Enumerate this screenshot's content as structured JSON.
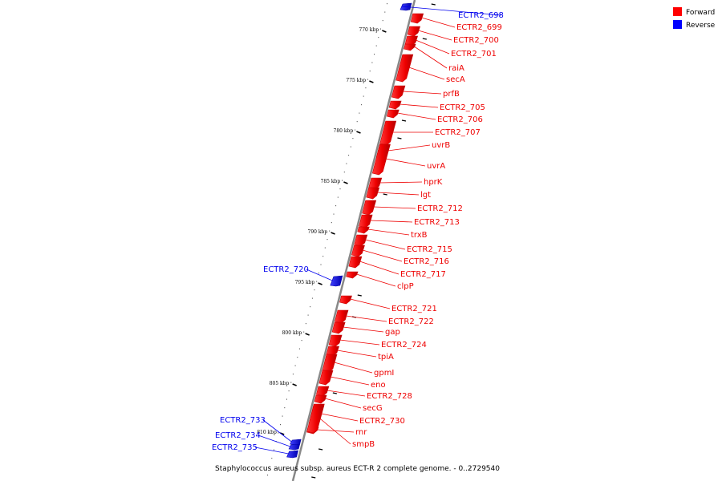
{
  "caption": "Staphylococcus aureus subsp. aureus ECT-R 2 complete genome. - 0..2729540",
  "legend": [
    {
      "label": "Forward",
      "color": "#ff0000"
    },
    {
      "label": "Reverse",
      "color": "#0000ff"
    }
  ],
  "ticks": [
    "770 kbp",
    "775 kbp",
    "780 kbp",
    "785 kbp",
    "790 kbp",
    "795 kbp",
    "800 kbp",
    "805 kbp",
    "810 kbp"
  ],
  "genes": [
    {
      "name": "ECTR2_698",
      "strand": "reverse"
    },
    {
      "name": "ECTR2_699",
      "strand": "forward"
    },
    {
      "name": "ECTR2_700",
      "strand": "forward"
    },
    {
      "name": "ECTR2_701",
      "strand": "forward"
    },
    {
      "name": "raiA",
      "strand": "forward"
    },
    {
      "name": "secA",
      "strand": "forward"
    },
    {
      "name": "prfB",
      "strand": "forward"
    },
    {
      "name": "ECTR2_705",
      "strand": "forward"
    },
    {
      "name": "ECTR2_706",
      "strand": "forward"
    },
    {
      "name": "ECTR2_707",
      "strand": "forward"
    },
    {
      "name": "uvrB",
      "strand": "forward"
    },
    {
      "name": "uvrA",
      "strand": "forward"
    },
    {
      "name": "hprK",
      "strand": "forward"
    },
    {
      "name": "lgt",
      "strand": "forward"
    },
    {
      "name": "ECTR2_712",
      "strand": "forward"
    },
    {
      "name": "ECTR2_713",
      "strand": "forward"
    },
    {
      "name": "trxB",
      "strand": "forward"
    },
    {
      "name": "ECTR2_715",
      "strand": "forward"
    },
    {
      "name": "ECTR2_716",
      "strand": "forward"
    },
    {
      "name": "ECTR2_717",
      "strand": "forward"
    },
    {
      "name": "ECTR2_720",
      "strand": "reverse"
    },
    {
      "name": "clpP",
      "strand": "forward"
    },
    {
      "name": "ECTR2_721",
      "strand": "forward"
    },
    {
      "name": "ECTR2_722",
      "strand": "forward"
    },
    {
      "name": "gap",
      "strand": "forward"
    },
    {
      "name": "ECTR2_724",
      "strand": "forward"
    },
    {
      "name": "tpiA",
      "strand": "forward"
    },
    {
      "name": "gpmI",
      "strand": "forward"
    },
    {
      "name": "eno",
      "strand": "forward"
    },
    {
      "name": "ECTR2_728",
      "strand": "forward"
    },
    {
      "name": "secG",
      "strand": "forward"
    },
    {
      "name": "ECTR2_730",
      "strand": "forward"
    },
    {
      "name": "rnr",
      "strand": "forward"
    },
    {
      "name": "smpB",
      "strand": "forward"
    },
    {
      "name": "ECTR2_733",
      "strand": "reverse"
    },
    {
      "name": "ECTR2_734",
      "strand": "reverse"
    },
    {
      "name": "ECTR2_735",
      "strand": "reverse"
    }
  ]
}
